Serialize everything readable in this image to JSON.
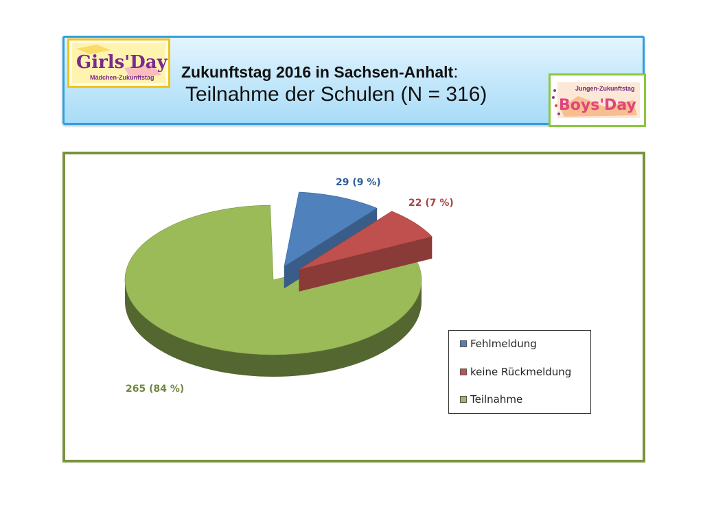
{
  "header": {
    "title_bold": "Zukunftstag 2016 in Sachsen-Anhalt",
    "title_colon": ":",
    "subtitle": "Teilnahme der Schulen (N = 316)",
    "logo_left": {
      "brand": "Girls'Day",
      "tagline": "Mädchen-Zukunftstag"
    },
    "logo_right": {
      "tagline": "Jungen-Zukunftstag",
      "brand": "Boys'Day"
    }
  },
  "chart_data": {
    "type": "pie",
    "variant": "3d-exploded",
    "title": "",
    "categories": [
      "Fehlmeldung",
      "keine Rückmeldung",
      "Teilnahme"
    ],
    "values": [
      29,
      22,
      265
    ],
    "data_labels": [
      "29 (9 %)",
      "22 (7 %)",
      "265 (84 %)"
    ],
    "colors": [
      "#4f81bd",
      "#c0504d",
      "#9bbb59"
    ],
    "legend": {
      "placement": "right",
      "entries": [
        "Fehlmeldung",
        "keine Rückmeldung",
        "Teilnahme"
      ]
    }
  }
}
